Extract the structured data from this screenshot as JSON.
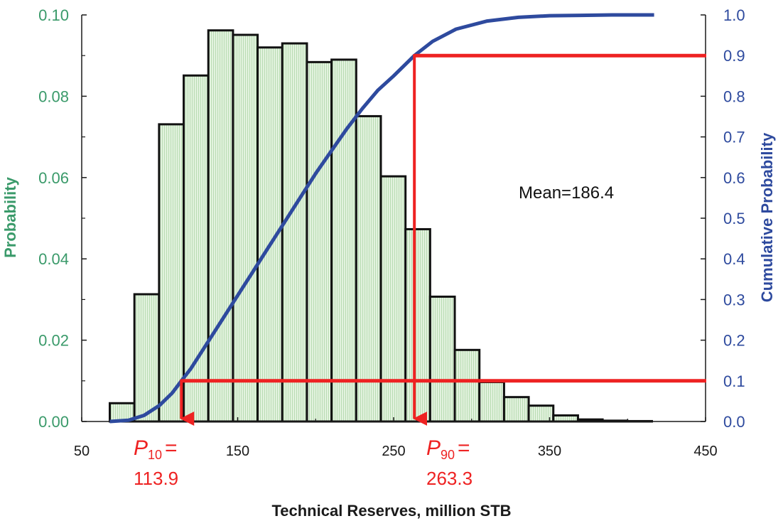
{
  "chart_data": {
    "type": "bar",
    "xlabel": "Technical Reserves, million STB",
    "ylabel": "Probability",
    "y2label": "Cumulative Probability",
    "xlim": [
      50,
      450
    ],
    "ylim": [
      0,
      0.1
    ],
    "y2lim": [
      0,
      1.0
    ],
    "x_ticks": [
      50,
      150,
      250,
      350,
      450
    ],
    "y_ticks": [
      0.0,
      0.02,
      0.04,
      0.06,
      0.08,
      0.1
    ],
    "y_tick_labels": [
      "0.00",
      "0.02",
      "0.04",
      "0.06",
      "0.08",
      "0.10"
    ],
    "y2_ticks": [
      0.0,
      0.1,
      0.2,
      0.3,
      0.4,
      0.5,
      0.6,
      0.7,
      0.8,
      0.9,
      1.0
    ],
    "y2_tick_labels": [
      "0.0",
      "0.1",
      "0.2",
      "0.3",
      "0.4",
      "0.5",
      "0.6",
      "0.7",
      "0.8",
      "0.9",
      "1.0"
    ],
    "bin_width": 15.8,
    "bin_start": 68,
    "histogram": [
      0.0045,
      0.0313,
      0.0731,
      0.0851,
      0.0962,
      0.0951,
      0.092,
      0.093,
      0.0884,
      0.089,
      0.0751,
      0.0603,
      0.0473,
      0.0307,
      0.0176,
      0.0097,
      0.006,
      0.0039,
      0.0015,
      0.0005,
      0.0002,
      0.0001
    ],
    "cumulative": {
      "x": [
        68,
        80,
        90,
        100,
        108,
        113.9,
        120,
        130,
        140,
        150,
        160,
        170,
        180,
        190,
        200,
        210,
        220,
        230,
        240,
        250,
        263.3,
        275,
        290,
        310,
        330,
        350,
        370,
        390,
        417
      ],
      "y": [
        0.0,
        0.003,
        0.015,
        0.04,
        0.07,
        0.1,
        0.13,
        0.19,
        0.25,
        0.31,
        0.37,
        0.43,
        0.49,
        0.55,
        0.61,
        0.665,
        0.72,
        0.77,
        0.815,
        0.85,
        0.9,
        0.935,
        0.965,
        0.985,
        0.994,
        0.998,
        0.999,
        1.0,
        1.0
      ]
    },
    "markers": [
      {
        "label_sym": "P",
        "label_sub": "10",
        "label_eq": "=",
        "value_text": "113.9",
        "x": 113.9,
        "p": 0.1
      },
      {
        "label_sym": "P",
        "label_sub": "90",
        "label_eq": "=",
        "value_text": "263.3",
        "x": 263.3,
        "p": 0.9
      }
    ],
    "mean_label": "Mean",
    "mean_eq": "=",
    "mean_value": "186.4",
    "colors": {
      "bar_fill": "#d6ecd2",
      "bar_stroke": "#111111",
      "cumulative": "#2e4a9e",
      "marker": "#ee2222",
      "left_axis": "#3a9a6a",
      "right_axis": "#2e4a9e"
    }
  }
}
